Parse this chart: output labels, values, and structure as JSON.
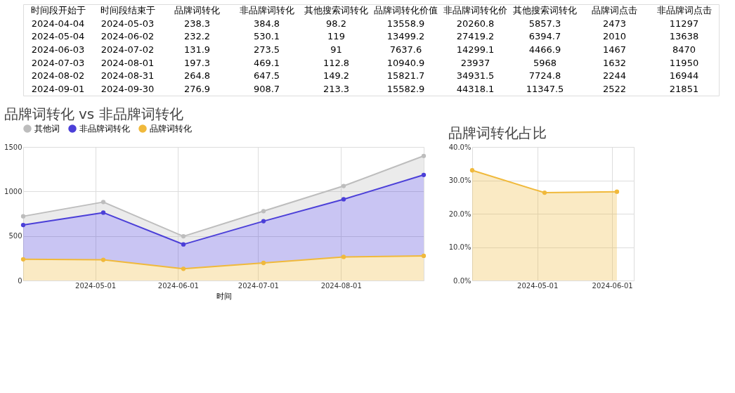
{
  "chart_data": [
    {
      "type": "other",
      "categories": [
        "时间段开始于",
        "时间段结束于",
        "品牌词转化",
        "非品牌词转化",
        "其他搜索词转化",
        "品牌词转化价值",
        "非品牌词转化价",
        "其他搜索词转化",
        "品牌词点击",
        "非品牌词点击"
      ],
      "annotations": [
        "2024-04-04",
        "2024-05-03",
        "238.3",
        "384.8",
        "98.2",
        "13558.9",
        "20260.8",
        "5857.3",
        "2473",
        "11297",
        "2024-05-04",
        "2024-06-02",
        "232.2",
        "530.1",
        "119",
        "13499.2",
        "27419.2",
        "6394.7",
        "2010",
        "13638",
        "2024-06-03",
        "2024-07-02",
        "131.9",
        "273.5",
        "91",
        "7637.6",
        "14299.1",
        "4466.9",
        "1467",
        "8470",
        "2024-07-03",
        "2024-08-01",
        "197.3",
        "469.1",
        "112.8",
        "10940.9",
        "23937",
        "5968",
        "1632",
        "11950",
        "2024-08-02",
        "2024-08-31",
        "264.8",
        "647.5",
        "149.2",
        "15821.7",
        "34931.5",
        "7724.8",
        "2244",
        "16944",
        "2024-09-01",
        "2024-09-30",
        "276.9",
        "908.7",
        "213.3",
        "15582.9",
        "44318.1",
        "11347.5",
        "2522",
        "21851"
      ]
    },
    {
      "type": "area",
      "title": "品牌词转化 vs 非品牌词转化",
      "xlabel": "时间",
      "stacked": true,
      "x": [
        "2024-04-04",
        "2024-05-04",
        "2024-06-03",
        "2024-07-03",
        "2024-08-02",
        "2024-09-01"
      ],
      "series": [
        {
          "name": "品牌词转化",
          "color": "#f0b93b",
          "values": [
            238.3,
            232.2,
            131.9,
            197.3,
            264.8,
            276.9
          ]
        },
        {
          "name": "非品牌词转化",
          "color": "#4b3fd8",
          "values": [
            384.8,
            530.1,
            273.5,
            469.1,
            647.5,
            908.7
          ]
        },
        {
          "name": "其他词",
          "color": "#bdbdbd",
          "values": [
            98.2,
            119,
            91,
            112.8,
            149.2,
            213.3
          ]
        }
      ],
      "xlim": [
        "2024-04-04",
        "2024-09-01"
      ],
      "xticks": [
        "2024-05-01",
        "2024-06-01",
        "2024-07-01",
        "2024-08-01"
      ],
      "ylim": [
        0,
        1500
      ],
      "yticks": [
        0,
        500,
        1000,
        1500
      ],
      "grid": true,
      "legend": "top",
      "marker": "circle"
    },
    {
      "type": "area",
      "title": "品牌词转化占比",
      "x": [
        "2024-04-04",
        "2024-05-04",
        "2024-06-03"
      ],
      "series": [
        {
          "color": "#f0b93b",
          "values": [
            33.0,
            26.3,
            26.6
          ]
        }
      ],
      "xlim": [
        "2024-04-04",
        "2024-06-10"
      ],
      "xticks": [
        "2024-05-01",
        "2024-06-01"
      ],
      "ylim": [
        0,
        40
      ],
      "yticks": [
        {
          "value": 0,
          "label": "0.0%"
        },
        {
          "value": 10,
          "label": "10.0%"
        },
        {
          "value": 20,
          "label": "20.0%"
        },
        {
          "value": 30,
          "label": "30.0%"
        },
        {
          "value": 40,
          "label": "40.0%"
        }
      ],
      "grid": true,
      "marker": "circle"
    }
  ]
}
